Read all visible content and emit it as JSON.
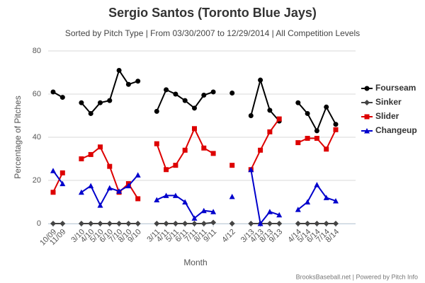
{
  "chart_data": {
    "type": "line",
    "title": "Sergio Santos (Toronto Blue Jays)",
    "subtitle": "Sorted by Pitch Type | From 03/30/2007 to 12/29/2014 | All Competition Levels",
    "y_label": "Percentage of Pitches",
    "x_label": "Month",
    "credits": "BrooksBaseball.net | Powered by Pitch Info",
    "categories": [
      "10/09",
      "11/09",
      null,
      "3/10",
      "4/10",
      "5/10",
      "6/10",
      "7/10",
      "8/10",
      "9/10",
      null,
      "3/11",
      "4/11",
      "5/11",
      "6/11",
      "7/11",
      "8/11",
      "9/11",
      null,
      "4/12",
      null,
      "3/13",
      "4/13",
      "8/13",
      "9/13",
      null,
      "4/14",
      "5/14",
      "6/14",
      "7/14",
      "8/14"
    ],
    "ylim": [
      0,
      80
    ],
    "yticks": [
      0,
      20,
      40,
      60,
      80
    ],
    "grid": true,
    "legend": "right",
    "series": [
      {
        "name": "Fourseam",
        "color": "#000000",
        "marker": "circle",
        "values": [
          61,
          58.5,
          null,
          56,
          51,
          56,
          57,
          71,
          64.5,
          66,
          null,
          52,
          62,
          60,
          57,
          53.5,
          59.5,
          61,
          null,
          60.5,
          null,
          50,
          66.5,
          52.5,
          47.5,
          null,
          56,
          51,
          43,
          54,
          46
        ]
      },
      {
        "name": "Sinker",
        "color": "#444444",
        "marker": "diamond",
        "values": [
          0,
          0,
          null,
          0,
          0,
          0,
          0,
          0,
          0,
          0,
          null,
          0,
          0,
          0,
          0,
          0,
          0,
          0.5,
          null,
          0,
          null,
          0,
          0,
          0,
          0,
          null,
          0,
          0,
          0,
          0,
          0
        ]
      },
      {
        "name": "Slider",
        "color": "#dd0000",
        "marker": "square",
        "values": [
          14.5,
          23.5,
          null,
          30,
          32,
          35.5,
          26.5,
          14.5,
          18.5,
          11.5,
          null,
          37,
          25,
          27,
          34,
          44,
          35,
          32.5,
          null,
          27,
          null,
          25,
          34,
          42.5,
          48.5,
          null,
          37.5,
          39.5,
          39.5,
          34.5,
          43.5
        ]
      },
      {
        "name": "Changeup",
        "color": "#0000cc",
        "marker": "triangle",
        "values": [
          24.5,
          18.5,
          null,
          14.5,
          17.5,
          8.5,
          16.5,
          15,
          17.5,
          22.5,
          null,
          11,
          13,
          13,
          10,
          2.5,
          6,
          5.5,
          null,
          12.5,
          null,
          25,
          0,
          5.5,
          4,
          null,
          6.5,
          10,
          18,
          12,
          10.5
        ]
      }
    ]
  }
}
